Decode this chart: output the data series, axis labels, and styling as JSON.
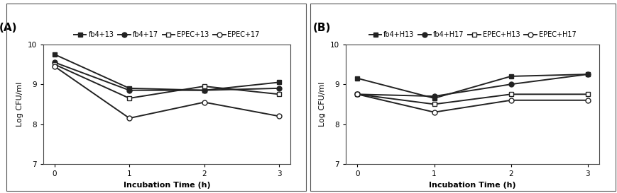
{
  "panel_A": {
    "title": "(A)",
    "xlabel": "Incubation Time (h)",
    "ylabel": "Log CFU/ml",
    "x": [
      0,
      1,
      2,
      3
    ],
    "ylim": [
      7,
      10
    ],
    "yticks": [
      7,
      8,
      9,
      10
    ],
    "series": [
      {
        "label": "fb4+13",
        "marker": "s",
        "filled": true,
        "y": [
          9.75,
          8.9,
          8.85,
          9.05
        ]
      },
      {
        "label": "fb4+17",
        "marker": "o",
        "filled": true,
        "y": [
          9.55,
          8.85,
          8.85,
          8.9
        ]
      },
      {
        "label": "EPEC+13",
        "marker": "s",
        "filled": false,
        "y": [
          9.5,
          8.65,
          8.95,
          8.75
        ]
      },
      {
        "label": "EPEC+17",
        "marker": "o",
        "filled": false,
        "y": [
          9.45,
          8.15,
          8.55,
          8.2
        ]
      }
    ]
  },
  "panel_B": {
    "title": "(B)",
    "xlabel": "Incubation Time (h)",
    "ylabel": "Log CFU/ml",
    "x": [
      0,
      1,
      2,
      3
    ],
    "ylim": [
      7,
      10
    ],
    "yticks": [
      7,
      8,
      9,
      10
    ],
    "series": [
      {
        "label": "fb4+H13",
        "marker": "s",
        "filled": true,
        "y": [
          9.15,
          8.65,
          9.2,
          9.25
        ]
      },
      {
        "label": "fb4+H17",
        "marker": "o",
        "filled": true,
        "y": [
          8.75,
          8.7,
          9.0,
          9.25
        ]
      },
      {
        "label": "EPEC+H13",
        "marker": "s",
        "filled": false,
        "y": [
          8.75,
          8.5,
          8.75,
          8.75
        ]
      },
      {
        "label": "EPEC+H17",
        "marker": "o",
        "filled": false,
        "y": [
          8.75,
          8.3,
          8.6,
          8.6
        ]
      }
    ]
  },
  "line_color": "#222222",
  "marker_size": 5,
  "linewidth": 1.4,
  "legend_fontsize": 7,
  "axis_label_fontsize": 8,
  "tick_fontsize": 7.5,
  "panel_label_fontsize": 11
}
